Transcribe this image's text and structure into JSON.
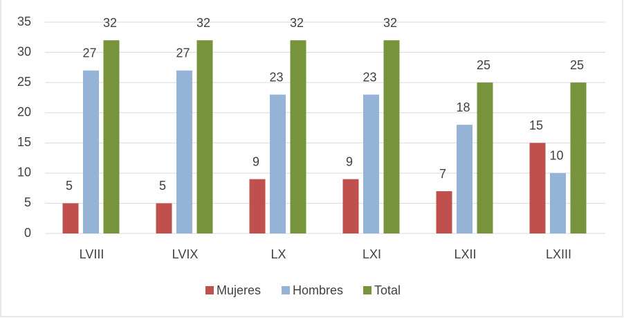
{
  "chart_data": {
    "type": "bar",
    "categories": [
      "LVIII",
      "LVIX",
      "LX",
      "LXI",
      "LXII",
      "LXIII"
    ],
    "series": [
      {
        "name": "Mujeres",
        "color": "#c0504d",
        "values": [
          5,
          5,
          9,
          9,
          7,
          15
        ]
      },
      {
        "name": "Hombres",
        "color": "#95b3d7",
        "values": [
          27,
          27,
          23,
          23,
          18,
          10
        ]
      },
      {
        "name": "Total",
        "color": "#77933c",
        "values": [
          32,
          32,
          32,
          32,
          25,
          25
        ]
      }
    ],
    "ylim": [
      0,
      35
    ],
    "yticks": [
      0,
      5,
      10,
      15,
      20,
      25,
      30,
      35
    ],
    "grid": true,
    "legend": "bottom"
  }
}
